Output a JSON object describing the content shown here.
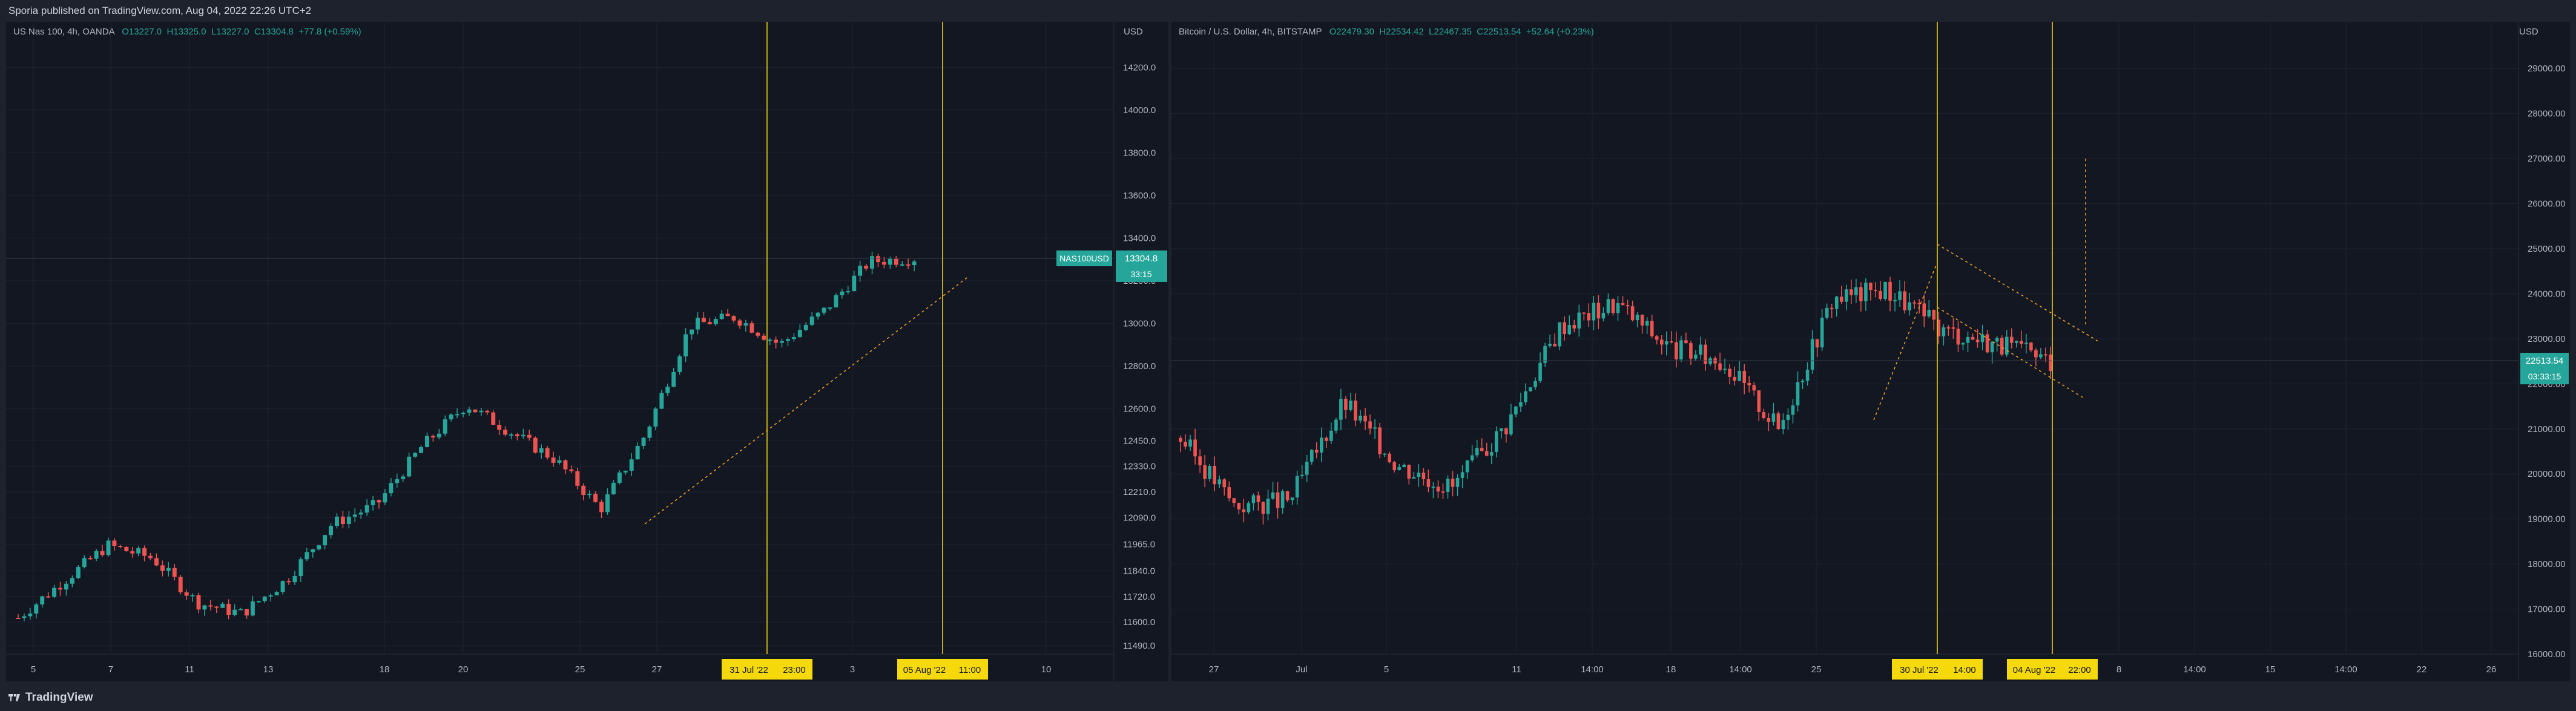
{
  "header": {
    "published": "Sporia published on TradingView.com, Aug 04, 2022 22:26 UTC+2"
  },
  "footer": {
    "brand": "TradingView"
  },
  "colors": {
    "up": "#26a69a",
    "down": "#ef5350",
    "highlight": "#f5d90a",
    "trendline": "#f5a623",
    "background": "#131722"
  },
  "left_chart": {
    "legend": {
      "title": "US Nas 100, 4h, OANDA",
      "open": "O13227.0",
      "high": "H13325.0",
      "low": "L13227.0",
      "close": "C13304.8",
      "change": "+77.8 (+0.59%)"
    },
    "currency": "USD",
    "price_tag": {
      "symbol": "NAS100USD",
      "price": "13304.8",
      "countdown": "33:15"
    },
    "date_markers": [
      "31 Jul '22",
      "23:00",
      "05 Aug '22",
      "11:00"
    ]
  },
  "right_chart": {
    "legend": {
      "title": "Bitcoin / U.S. Dollar, 4h, BITSTAMP",
      "open": "O22479.30",
      "high": "H22534.42",
      "low": "L22467.35",
      "close": "C22513.54",
      "change": "+52.64 (+0.23%)"
    },
    "currency": "USD",
    "price_tag": {
      "price": "22513.54",
      "countdown": "03:33:15"
    },
    "date_markers": [
      "30 Jul '22",
      "14:00",
      "04 Aug '22",
      "22:00"
    ]
  },
  "chart_data": [
    {
      "type": "line",
      "symbol": "NAS100USD",
      "y_ticks": [
        "14200.0",
        "14000.0",
        "13800.0",
        "13600.0",
        "13400.0",
        "13200.0",
        "13000.0",
        "12800.0",
        "12600.0",
        "12450.0",
        "12330.0",
        "12210.0",
        "12090.0",
        "11965.0",
        "11840.0",
        "11720.0",
        "11600.0",
        "11490.0"
      ],
      "x_ticks": [
        "5",
        "7",
        "11",
        "13",
        "18",
        "20",
        "25",
        "27",
        "3",
        "10"
      ],
      "close_points": [
        {
          "x": "5",
          "y": 11620
        },
        {
          "x": "7",
          "y": 11790
        },
        {
          "x": "8",
          "y": 11960
        },
        {
          "x": "11",
          "y": 11900
        },
        {
          "x": "12",
          "y": 11690
        },
        {
          "x": "13",
          "y": 11640
        },
        {
          "x": "15",
          "y": 11800
        },
        {
          "x": "18",
          "y": 12060
        },
        {
          "x": "19",
          "y": 12150
        },
        {
          "x": "20",
          "y": 12420
        },
        {
          "x": "22",
          "y": 12620
        },
        {
          "x": "25",
          "y": 12490
        },
        {
          "x": "26",
          "y": 12360
        },
        {
          "x": "27",
          "y": 12130
        },
        {
          "x": "28",
          "y": 12480
        },
        {
          "x": "29",
          "y": 12990
        },
        {
          "x": "1",
          "y": 13030
        },
        {
          "x": "2",
          "y": 12900
        },
        {
          "x": "3",
          "y": 13060
        },
        {
          "x": "4",
          "y": 13290
        },
        {
          "x": "5",
          "y": 13305
        }
      ],
      "last_price": 13304.8,
      "ylim": [
        11450,
        14300
      ]
    },
    {
      "type": "line",
      "symbol": "BTCUSD",
      "y_ticks": [
        "29000.00",
        "28000.00",
        "27000.00",
        "26000.00",
        "25000.00",
        "24000.00",
        "23000.00",
        "22000.00",
        "21000.00",
        "20000.00",
        "19000.00",
        "18000.00",
        "17000.00",
        "16000.00"
      ],
      "x_ticks": [
        "27",
        "Jul",
        "5",
        "11",
        "14:00",
        "18",
        "14:00",
        "25",
        "8",
        "14:00",
        "15",
        "14:00",
        "22",
        "26"
      ],
      "close_points": [
        {
          "x": "27",
          "y": 20800
        },
        {
          "x": "1",
          "y": 19300
        },
        {
          "x": "5",
          "y": 19400
        },
        {
          "x": "7",
          "y": 21600
        },
        {
          "x": "11",
          "y": 20200
        },
        {
          "x": "13",
          "y": 19700
        },
        {
          "x": "16",
          "y": 21100
        },
        {
          "x": "19",
          "y": 23300
        },
        {
          "x": "20",
          "y": 23800
        },
        {
          "x": "22",
          "y": 22800
        },
        {
          "x": "24",
          "y": 22500
        },
        {
          "x": "26",
          "y": 21000
        },
        {
          "x": "28",
          "y": 23900
        },
        {
          "x": "30",
          "y": 24100
        },
        {
          "x": "1",
          "y": 23200
        },
        {
          "x": "3",
          "y": 22900
        },
        {
          "x": "4",
          "y": 22514
        }
      ],
      "last_price": 22513.54,
      "ylim": [
        16000,
        29500
      ]
    }
  ]
}
